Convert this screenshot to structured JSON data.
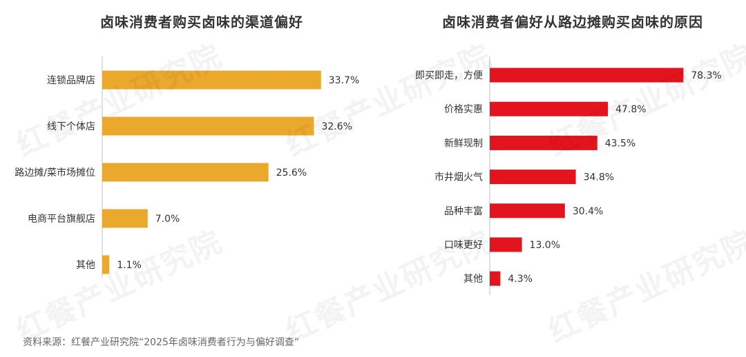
{
  "chart_data": [
    {
      "type": "bar",
      "orientation": "horizontal",
      "title": "卤味消费者购买卤味的渠道偏好",
      "categories": [
        "连锁品牌店",
        "线下个体店",
        "路边摊/菜市场摊位",
        "电商平台旗舰店",
        "其他"
      ],
      "values": [
        33.7,
        32.6,
        25.6,
        7.0,
        1.1
      ],
      "value_labels": [
        "33.7%",
        "32.6%",
        "25.6%",
        "7.0%",
        "1.1%"
      ],
      "unit": "%",
      "color": "#EAA92D",
      "xlim": [
        0,
        40
      ],
      "grid": false,
      "legend": "none"
    },
    {
      "type": "bar",
      "orientation": "horizontal",
      "title": "卤味消费者偏好从路边摊购买卤味的原因",
      "categories": [
        "即买即走，方便",
        "价格实惠",
        "新鲜现制",
        "市井烟火气",
        "品种丰富",
        "口味更好",
        "其他"
      ],
      "values": [
        78.3,
        47.8,
        43.5,
        34.8,
        30.4,
        13.0,
        4.3
      ],
      "value_labels": [
        "78.3%",
        "47.8%",
        "43.5%",
        "34.8%",
        "30.4%",
        "13.0%",
        "4.3%"
      ],
      "unit": "%",
      "color": "#E3141E",
      "xlim": [
        0,
        100
      ],
      "grid": false,
      "legend": "none"
    }
  ],
  "source": "资料来源：红餐产业研究院“2025年卤味消费者行为与偏好调查”",
  "watermark": "红餐产业研究院"
}
